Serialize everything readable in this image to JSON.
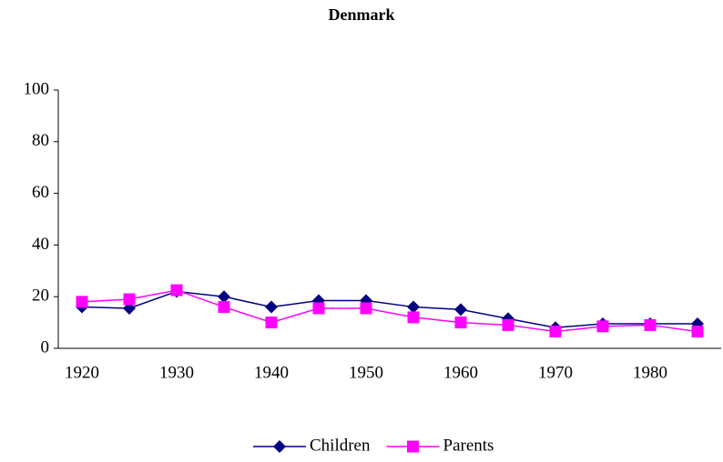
{
  "chart_data": {
    "type": "line",
    "title": "Denmark",
    "categories": [
      "1920",
      null,
      "1930",
      null,
      "1940",
      null,
      "1950",
      null,
      "1960",
      null,
      "1970",
      null,
      "1980",
      null
    ],
    "series": [
      {
        "name": "Children",
        "color": "#000080",
        "marker": "diamond",
        "values": [
          16,
          15.5,
          22,
          20,
          16,
          18.5,
          18.5,
          16,
          15,
          11.5,
          8,
          9.5,
          9.5,
          9.5
        ]
      },
      {
        "name": "Parents",
        "color": "#ff00ff",
        "marker": "square",
        "values": [
          18,
          19,
          22.5,
          16,
          10,
          15.5,
          15.5,
          12,
          10,
          9,
          6.5,
          8.5,
          9,
          6.5
        ]
      }
    ],
    "ylim": [
      0,
      100
    ],
    "yticks": [
      0,
      20,
      40,
      60,
      80,
      100
    ],
    "grid": false,
    "legend": "bottom"
  }
}
